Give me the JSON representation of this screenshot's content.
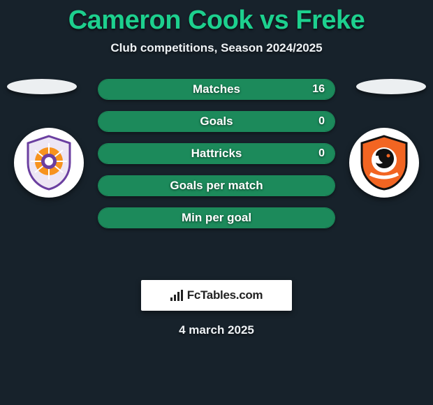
{
  "title_color": "#1dd08e",
  "background_color": "#17222b",
  "title": "Cameron Cook vs Freke",
  "subtitle": "Club competitions, Season 2024/2025",
  "left_team_color": "#6b3fa0",
  "right_team_color": "#f26522",
  "bar_fill_color": "#1c8a5b",
  "bar_empty_color": "#14241e",
  "bars": [
    {
      "label": "Matches",
      "left_val": "",
      "right_val": "16",
      "left_pct": 0,
      "right_pct": 100
    },
    {
      "label": "Goals",
      "left_val": "",
      "right_val": "0",
      "left_pct": 50,
      "right_pct": 50
    },
    {
      "label": "Hattricks",
      "left_val": "",
      "right_val": "0",
      "left_pct": 50,
      "right_pct": 50
    },
    {
      "label": "Goals per match",
      "left_val": "",
      "right_val": "",
      "left_pct": 50,
      "right_pct": 50
    },
    {
      "label": "Min per goal",
      "left_val": "",
      "right_val": "",
      "left_pct": 50,
      "right_pct": 50
    }
  ],
  "brand": "FcTables.com",
  "date": "4 march 2025"
}
